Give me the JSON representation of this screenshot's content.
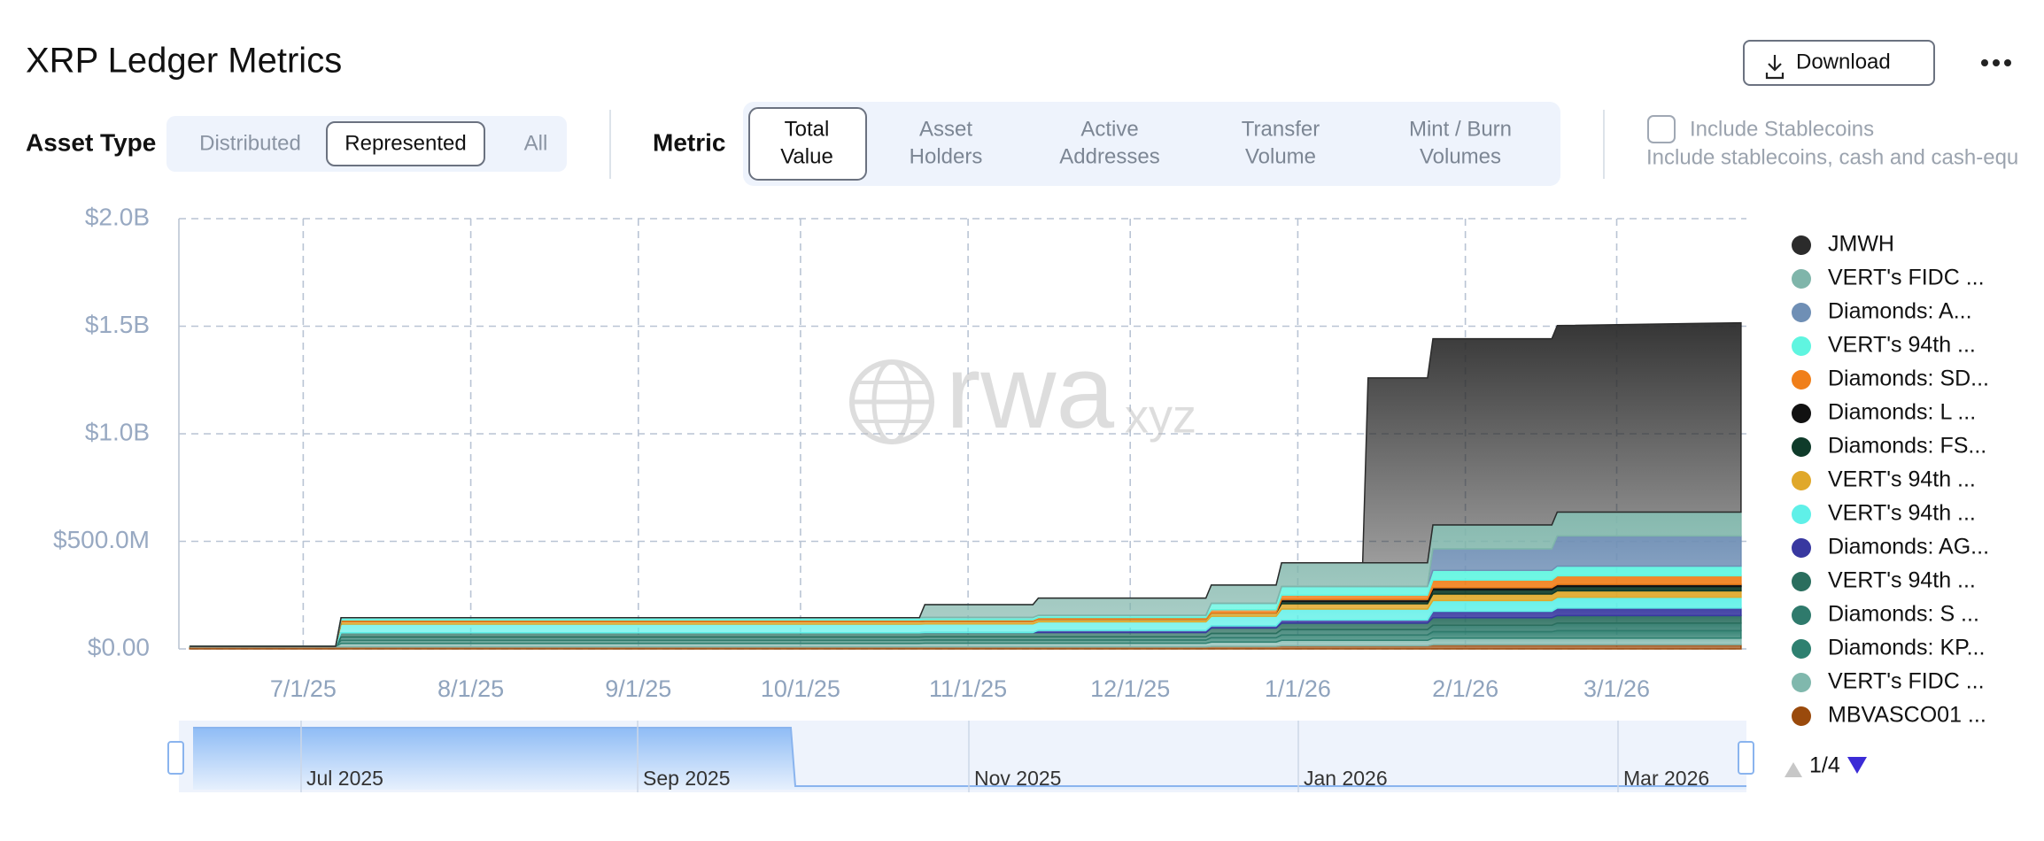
{
  "ui": {
    "title": "XRP Ledger Metrics",
    "download": "Download",
    "asset_type": {
      "label": "Asset Type",
      "options": [
        "Distributed",
        "Represented",
        "All"
      ]
    },
    "metric": {
      "label": "Metric",
      "options": [
        [
          "Total",
          "Value"
        ],
        [
          "Asset",
          "Holders"
        ],
        [
          "Active",
          "Addresses"
        ],
        [
          "Transfer",
          "Volume"
        ],
        [
          "Mint / Burn",
          "Volumes"
        ]
      ]
    },
    "stablecoins": {
      "label": "Include Stablecoins",
      "note": "Include stablecoins, cash and cash-equ"
    },
    "watermark": [
      "rwa",
      "xyz"
    ],
    "navigator": [
      "Jul 2025",
      "Sep 2025",
      "Nov 2025",
      "Jan 2026",
      "Mar 2026"
    ],
    "legend_page": "1/4"
  },
  "chart_data": {
    "type": "stacked-area",
    "x": [
      "6/10/25",
      "7/7/25",
      "7/8/25",
      "10/23/25",
      "10/24/25",
      "11/13/25",
      "11/14/25",
      "12/15/25",
      "12/16/25",
      "12/28/25",
      "12/29/25",
      "1/13/26",
      "1/14/26",
      "1/25/26",
      "1/26/26",
      "2/17/26",
      "2/18/26",
      "3/24/26"
    ],
    "xlim": [
      "6/8/25",
      "3/25/26"
    ],
    "xticks": [
      "7/1/25",
      "8/1/25",
      "9/1/25",
      "10/1/25",
      "11/1/25",
      "12/1/25",
      "1/1/26",
      "2/1/26",
      "3/1/26"
    ],
    "ylim": [
      0,
      2000
    ],
    "yticks": [
      {
        "value": 0,
        "label": "$0.00"
      },
      {
        "value": 500,
        "label": "$500.0M"
      },
      {
        "value": 1000,
        "label": "$1.0B"
      },
      {
        "value": 1500,
        "label": "$1.5B"
      },
      {
        "value": 2000,
        "label": "$2.0B"
      }
    ],
    "grid": true,
    "legend": "right",
    "series": [
      {
        "name": "JMWH",
        "color": "#2b2b2b",
        "values": [
          0,
          0,
          0,
          0,
          0,
          0,
          0,
          0,
          0,
          0,
          0,
          0,
          860,
          860,
          866,
          866,
          867,
          880
        ]
      },
      {
        "name": "VERT's FIDC ...",
        "color": "#7fb5aa",
        "values": [
          0,
          0,
          0,
          0,
          60,
          60,
          80,
          80,
          85,
          85,
          110,
          110,
          110,
          110,
          111,
          111,
          111,
          111
        ]
      },
      {
        "name": "Diamonds: A...",
        "color": "#6f8fb5",
        "values": [
          0,
          0,
          0,
          0,
          0,
          0,
          0,
          0,
          0,
          0,
          0,
          0,
          0,
          0,
          100,
          100,
          140,
          140
        ]
      },
      {
        "name": "VERT's 94th ...",
        "color": "#5ff5e0",
        "values": [
          0,
          0,
          10,
          10,
          10,
          10,
          10,
          10,
          30,
          30,
          40,
          40,
          40,
          40,
          45,
          45,
          45,
          45
        ]
      },
      {
        "name": "Diamonds: SD...",
        "color": "#f07f1a",
        "values": [
          0,
          0,
          8,
          8,
          8,
          8,
          8,
          8,
          15,
          15,
          20,
          20,
          20,
          20,
          35,
          35,
          40,
          40
        ]
      },
      {
        "name": "Diamonds: L ...",
        "color": "#111111",
        "values": [
          0,
          0,
          0,
          0,
          0,
          0,
          0,
          0,
          0,
          0,
          10,
          10,
          10,
          10,
          10,
          10,
          10,
          10
        ]
      },
      {
        "name": "Diamonds: FS...",
        "color": "#0f3b2a",
        "values": [
          0,
          0,
          0,
          0,
          0,
          0,
          0,
          0,
          0,
          0,
          10,
          10,
          10,
          10,
          20,
          20,
          20,
          20
        ]
      },
      {
        "name": "VERT's 94th ...",
        "color": "#e0a82a",
        "values": [
          0,
          0,
          12,
          12,
          12,
          12,
          12,
          12,
          15,
          15,
          25,
          25,
          25,
          25,
          30,
          30,
          30,
          30
        ]
      },
      {
        "name": "VERT's 94th ...",
        "color": "#5ff0e8",
        "values": [
          0,
          0,
          40,
          40,
          40,
          40,
          40,
          40,
          45,
          45,
          50,
          50,
          50,
          50,
          50,
          50,
          50,
          50
        ]
      },
      {
        "name": "Diamonds: AG...",
        "color": "#3838a0",
        "values": [
          0,
          0,
          0,
          0,
          0,
          0,
          10,
          10,
          10,
          10,
          15,
          15,
          15,
          15,
          30,
          30,
          35,
          35
        ]
      },
      {
        "name": "VERT's 94th ...",
        "color": "#2a6e5e",
        "values": [
          0,
          0,
          20,
          20,
          20,
          20,
          20,
          20,
          25,
          25,
          30,
          30,
          30,
          30,
          35,
          35,
          35,
          35
        ]
      },
      {
        "name": "Diamonds: S ...",
        "color": "#2f7a6c",
        "values": [
          0,
          0,
          15,
          15,
          15,
          15,
          15,
          15,
          20,
          20,
          25,
          25,
          25,
          25,
          30,
          30,
          35,
          35
        ]
      },
      {
        "name": "Diamonds: KP...",
        "color": "#2e8070",
        "values": [
          0,
          0,
          15,
          15,
          15,
          15,
          15,
          15,
          20,
          20,
          25,
          25,
          25,
          25,
          30,
          30,
          35,
          35
        ]
      },
      {
        "name": "VERT's FIDC ...",
        "color": "#80b8ad",
        "values": [
          2,
          2,
          15,
          15,
          16,
          16,
          16,
          16,
          20,
          20,
          25,
          25,
          25,
          25,
          30,
          30,
          30,
          30
        ]
      },
      {
        "name": "MBVASCO01 ...",
        "color": "#9a4a0c",
        "values": [
          10,
          10,
          10,
          10,
          10,
          10,
          10,
          10,
          12,
          12,
          15,
          15,
          15,
          15,
          20,
          20,
          20,
          20
        ]
      }
    ]
  }
}
